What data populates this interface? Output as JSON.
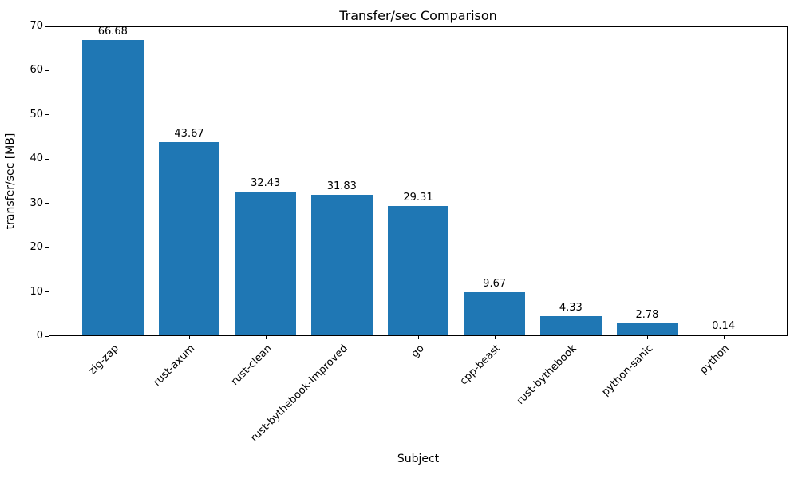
{
  "chart_data": {
    "type": "bar",
    "title": "Transfer/sec Comparison",
    "xlabel": "Subject",
    "ylabel": "transfer/sec [MB]",
    "categories": [
      "zig-zap",
      "rust-axum",
      "rust-clean",
      "rust-bythebook-improved",
      "go",
      "cpp-beast",
      "rust-bythebook",
      "python-sanic",
      "python"
    ],
    "values": [
      66.68,
      43.67,
      32.43,
      31.83,
      29.31,
      9.67,
      4.33,
      2.78,
      0.14
    ],
    "value_labels": [
      "66.68",
      "43.67",
      "32.43",
      "31.83",
      "29.31",
      "9.67",
      "4.33",
      "2.78",
      "0.14"
    ],
    "ylim": [
      0,
      70
    ],
    "yticks": [
      0,
      10,
      20,
      30,
      40,
      50,
      60,
      70
    ],
    "bar_color": "#1f77b4",
    "bar_width_fraction": 0.8,
    "grid": false,
    "legend_position": "none",
    "x_tick_rotation_deg": 45
  }
}
